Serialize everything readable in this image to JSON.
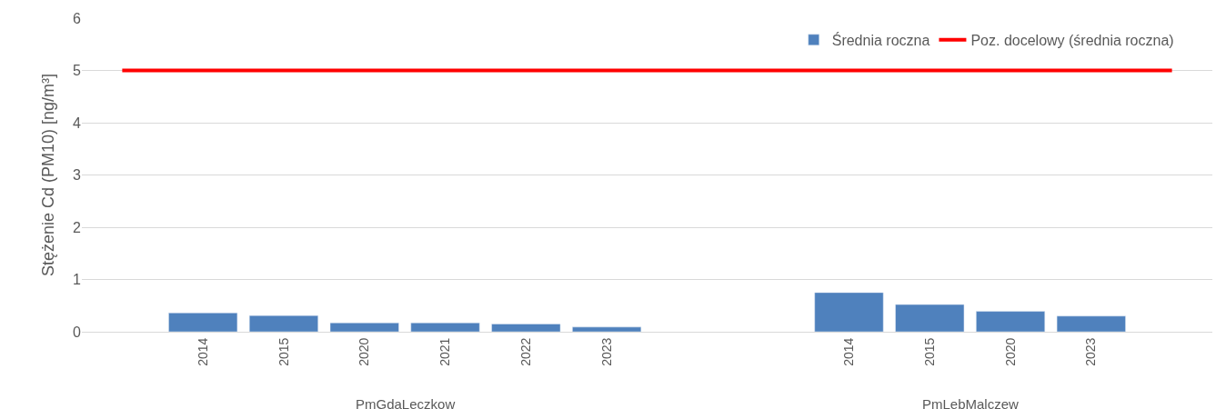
{
  "chart_data": {
    "type": "bar",
    "ylabel": "Stężenie Cd (PM10) [ng/m³]",
    "categories": [
      "2014",
      "2015",
      "2020",
      "2021",
      "2022",
      "2023",
      null,
      null,
      "2014",
      "2015",
      "2020",
      "2023"
    ],
    "series": [
      {
        "name": "Średnia roczna",
        "color": "#4f81bd",
        "values": [
          0.36,
          0.31,
          0.17,
          0.17,
          0.15,
          0.09,
          null,
          null,
          0.75,
          0.52,
          0.39,
          0.3
        ]
      }
    ],
    "ref_lines": [
      {
        "axis": "y",
        "value": 5,
        "label": "Poz. docelowy (średnia roczna)",
        "color": "#ff0000",
        "line_style": "solid"
      }
    ],
    "annotations": [
      "PmGdaLeczkow",
      "PmLebMalczew"
    ],
    "ylim": [
      0,
      6
    ],
    "yticks": [
      0,
      1,
      2,
      3,
      4,
      5,
      6
    ],
    "grid": "y",
    "legend": "top right"
  }
}
